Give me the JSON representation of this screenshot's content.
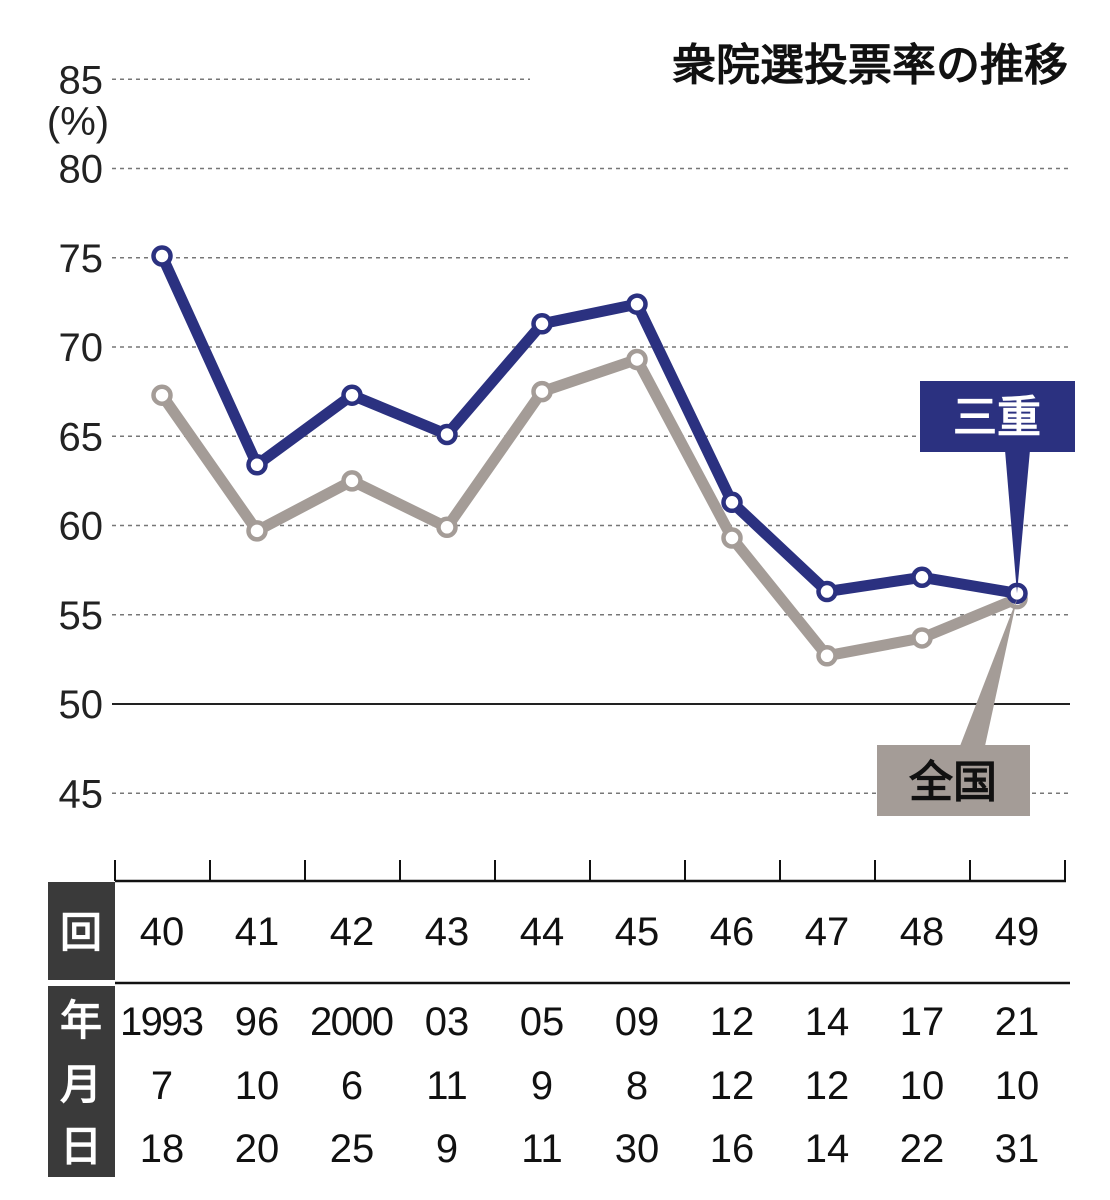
{
  "chart_data": {
    "type": "line",
    "title": "衆院選投票率の推移",
    "ylabel": "(%)",
    "ylim": [
      45,
      85
    ],
    "yticks": [
      45,
      50,
      55,
      60,
      65,
      70,
      75,
      80,
      85
    ],
    "grid": true,
    "categories": [
      "40",
      "41",
      "42",
      "43",
      "44",
      "45",
      "46",
      "47",
      "48",
      "49"
    ],
    "table": {
      "row_headers": [
        "回",
        "年",
        "月",
        "日"
      ],
      "years": [
        "1993",
        "96",
        "2000",
        "03",
        "05",
        "09",
        "12",
        "14",
        "17",
        "21"
      ],
      "months": [
        "7",
        "10",
        "6",
        "11",
        "9",
        "8",
        "12",
        "12",
        "10",
        "10"
      ],
      "days": [
        "18",
        "20",
        "25",
        "9",
        "11",
        "30",
        "16",
        "14",
        "22",
        "31"
      ]
    },
    "series": [
      {
        "name": "三重",
        "color": "#2b3180",
        "values": [
          75.1,
          63.4,
          67.3,
          65.1,
          71.3,
          72.4,
          61.3,
          56.3,
          57.1,
          56.2
        ]
      },
      {
        "name": "全国",
        "color": "#a49c97",
        "values": [
          67.3,
          59.7,
          62.5,
          59.9,
          67.5,
          69.3,
          59.3,
          52.7,
          53.7,
          55.9
        ]
      }
    ]
  }
}
